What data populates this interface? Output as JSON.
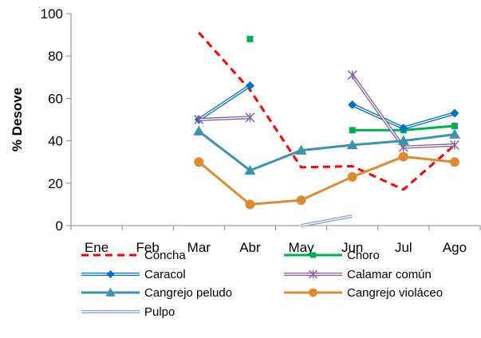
{
  "chart_data": {
    "type": "line",
    "categories": [
      "Ene",
      "Feb",
      "Mar",
      "Abr",
      "May",
      "Jun",
      "Jul",
      "Ago"
    ],
    "ylabel": "% Desove",
    "ylim": [
      0,
      100
    ],
    "yticks": [
      0,
      20,
      40,
      60,
      80,
      100
    ],
    "grid": false,
    "legend_position": "bottom",
    "series": [
      {
        "name": "Concha",
        "color": "#ff0000",
        "style": "dashed",
        "marker": "none",
        "values": [
          null,
          null,
          91,
          64,
          27.5,
          28,
          17,
          38
        ]
      },
      {
        "name": "Choro",
        "color": "#00b050",
        "style": "solid",
        "marker": "square",
        "values": [
          null,
          null,
          null,
          88,
          null,
          45,
          45,
          47
        ]
      },
      {
        "name": "Caracol",
        "color": "#0070c0",
        "style": "double",
        "marker": "diamond",
        "values": [
          null,
          null,
          50,
          66,
          null,
          57,
          46,
          53
        ]
      },
      {
        "name": "Calamar común",
        "color": "#7f5fa0",
        "style": "double",
        "marker": "asterisk",
        "values": [
          null,
          null,
          50,
          51,
          null,
          71,
          37,
          38
        ]
      },
      {
        "name": "Cangrejo peludo",
        "color": "#3a93b0",
        "style": "solid",
        "marker": "triangle",
        "values": [
          null,
          null,
          44.5,
          26,
          35.5,
          38,
          40,
          43
        ]
      },
      {
        "name": "Cangrejo violáceo",
        "color": "#e08a30",
        "style": "solid",
        "marker": "circle",
        "values": [
          null,
          null,
          30,
          10,
          12,
          23,
          32.5,
          30
        ]
      },
      {
        "name": "Pulpo",
        "color": "#7f9fd0",
        "style": "double",
        "marker": "none",
        "values": [
          null,
          null,
          null,
          null,
          0,
          4.5,
          null,
          null
        ]
      }
    ]
  }
}
